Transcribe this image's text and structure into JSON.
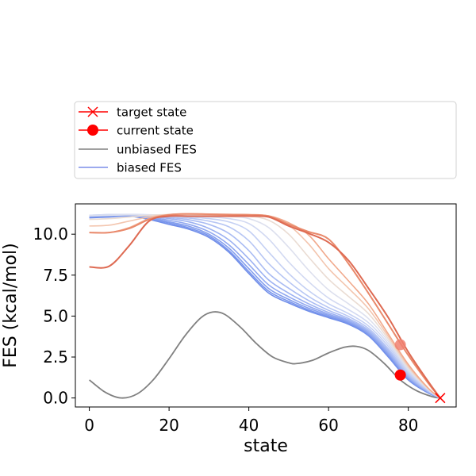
{
  "chart_data": {
    "type": "line",
    "xlabel": "state",
    "ylabel": "FES (kcal/mol)",
    "xlim": [
      -3.5,
      92
    ],
    "ylim": [
      -0.55,
      11.85
    ],
    "x_ticks": [
      0,
      20,
      40,
      60,
      80
    ],
    "y_ticks": [
      0.0,
      2.5,
      5.0,
      7.5,
      10.0
    ],
    "x_tick_labels": [
      "0",
      "20",
      "40",
      "60",
      "80"
    ],
    "y_tick_labels": [
      "0.0",
      "2.5",
      "5.0",
      "7.5",
      "10.0"
    ],
    "grid": false,
    "legend_placement": "above plot",
    "legend": [
      {
        "label": "target state",
        "kind": "x-marker",
        "color": "#ff0000"
      },
      {
        "label": "current state",
        "kind": "dot-marker",
        "color": "#ff0000"
      },
      {
        "label": "unbiased FES",
        "kind": "line",
        "color": "#808080"
      },
      {
        "label": "biased FES",
        "kind": "line",
        "color": "#7b8ee8"
      }
    ],
    "unbiased_fes": {
      "color": "#808080",
      "x": [
        0,
        4,
        8,
        12,
        16,
        20,
        24,
        28,
        31,
        34,
        38,
        42,
        46,
        50,
        52,
        56,
        60,
        64,
        67,
        70,
        74,
        78,
        82,
        86,
        88
      ],
      "y": [
        1.1,
        0.35,
        0.0,
        0.25,
        1.1,
        2.4,
        3.8,
        4.9,
        5.25,
        5.1,
        4.3,
        3.3,
        2.5,
        2.15,
        2.1,
        2.3,
        2.75,
        3.1,
        3.15,
        2.9,
        2.1,
        1.1,
        0.45,
        0.08,
        0.0
      ]
    },
    "biased_fes": {
      "x": [
        0,
        5,
        10,
        15,
        20,
        25,
        30,
        35,
        40,
        45,
        50,
        55,
        60,
        65,
        70,
        75,
        80,
        85,
        88
      ],
      "curves": [
        {
          "color": "#6f8de9",
          "y": [
            11.0,
            11.05,
            11.1,
            10.9,
            10.6,
            10.3,
            9.8,
            8.9,
            7.6,
            6.4,
            5.8,
            5.3,
            4.9,
            4.5,
            3.8,
            2.5,
            1.1,
            0.3,
            0.0
          ]
        },
        {
          "color": "#7a96ec",
          "y": [
            11.05,
            11.1,
            11.12,
            10.95,
            10.68,
            10.38,
            9.9,
            9.0,
            7.72,
            6.52,
            5.9,
            5.38,
            4.96,
            4.56,
            3.86,
            2.58,
            1.15,
            0.32,
            0.0
          ]
        },
        {
          "color": "#859fee",
          "y": [
            11.07,
            11.12,
            11.15,
            11.0,
            10.75,
            10.48,
            10.0,
            9.15,
            7.9,
            6.68,
            6.02,
            5.48,
            5.04,
            4.62,
            3.92,
            2.64,
            1.2,
            0.34,
            0.0
          ]
        },
        {
          "color": "#91a8f0",
          "y": [
            11.1,
            11.15,
            11.18,
            11.05,
            10.85,
            10.6,
            10.15,
            9.35,
            8.15,
            6.9,
            6.18,
            5.6,
            5.12,
            4.68,
            3.98,
            2.72,
            1.25,
            0.36,
            0.0
          ]
        },
        {
          "color": "#9db2f2",
          "y": [
            11.12,
            11.17,
            11.2,
            11.1,
            10.95,
            10.75,
            10.35,
            9.65,
            8.5,
            7.2,
            6.4,
            5.75,
            5.22,
            4.76,
            4.05,
            2.8,
            1.3,
            0.38,
            0.0
          ]
        },
        {
          "color": "#aabcf3",
          "y": [
            11.13,
            11.18,
            11.2,
            11.14,
            11.02,
            10.88,
            10.6,
            10.05,
            9.0,
            7.6,
            6.7,
            5.95,
            5.35,
            4.85,
            4.14,
            2.9,
            1.37,
            0.4,
            0.0
          ]
        },
        {
          "color": "#b7c6f4",
          "y": [
            11.14,
            11.19,
            11.2,
            11.17,
            11.08,
            10.98,
            10.8,
            10.45,
            9.6,
            8.2,
            7.1,
            6.2,
            5.52,
            4.98,
            4.25,
            3.0,
            1.45,
            0.43,
            0.0
          ]
        },
        {
          "color": "#c4d0f4",
          "y": [
            11.15,
            11.2,
            11.2,
            11.18,
            11.12,
            11.05,
            10.95,
            10.75,
            10.2,
            8.9,
            7.6,
            6.55,
            5.75,
            5.15,
            4.4,
            3.15,
            1.55,
            0.46,
            0.0
          ]
        },
        {
          "color": "#d2d9f2",
          "y": [
            11.15,
            11.2,
            11.2,
            11.19,
            11.15,
            11.1,
            11.05,
            10.95,
            10.65,
            9.7,
            8.3,
            7.1,
            6.1,
            5.4,
            4.6,
            3.3,
            1.65,
            0.5,
            0.0
          ]
        },
        {
          "color": "#dde0ee",
          "y": [
            11.12,
            11.15,
            11.18,
            11.18,
            11.18,
            11.15,
            11.12,
            11.08,
            10.95,
            10.4,
            9.2,
            7.8,
            6.6,
            5.75,
            4.85,
            3.45,
            1.75,
            0.53,
            0.0
          ]
        },
        {
          "color": "#eadcd3",
          "y": [
            10.9,
            10.95,
            11.05,
            11.15,
            11.2,
            11.2,
            11.18,
            11.15,
            11.1,
            10.85,
            10.0,
            8.6,
            7.25,
            6.2,
            5.15,
            3.6,
            1.85,
            0.56,
            0.0
          ]
        },
        {
          "color": "#f3c5ae",
          "y": [
            10.5,
            10.55,
            10.8,
            11.05,
            11.2,
            11.22,
            11.2,
            11.18,
            11.15,
            11.05,
            10.55,
            9.4,
            7.9,
            6.7,
            5.45,
            3.75,
            1.95,
            0.58,
            0.0
          ]
        },
        {
          "color": "#f1a98c",
          "y": [
            10.1,
            10.1,
            10.4,
            10.95,
            11.2,
            11.24,
            11.22,
            11.2,
            11.2,
            11.12,
            10.7,
            9.95,
            8.5,
            7.15,
            5.75,
            3.9,
            2.05,
            0.6,
            0.0
          ]
        },
        {
          "color": "#e9896b",
          "y": [
            10.1,
            10.1,
            10.35,
            10.9,
            11.18,
            11.24,
            11.22,
            11.2,
            11.18,
            11.1,
            10.6,
            10.15,
            9.7,
            8.2,
            6.4,
            4.5,
            2.6,
            0.9,
            0.0
          ]
        },
        {
          "color": "#de6a52",
          "y": [
            8.0,
            8.05,
            9.3,
            10.8,
            11.1,
            11.1,
            11.1,
            11.1,
            11.1,
            11.05,
            10.5,
            10.05,
            9.5,
            8.4,
            6.7,
            4.9,
            2.8,
            1.0,
            0.0
          ]
        }
      ]
    },
    "points": {
      "current_state": {
        "x": 78,
        "y": 1.4,
        "color": "#ff0000"
      },
      "previous_state": {
        "x": 78,
        "y": 3.25,
        "color": "#f08070"
      },
      "target_state": {
        "x": 88,
        "y": 0.0,
        "color": "#ff0000"
      }
    }
  }
}
